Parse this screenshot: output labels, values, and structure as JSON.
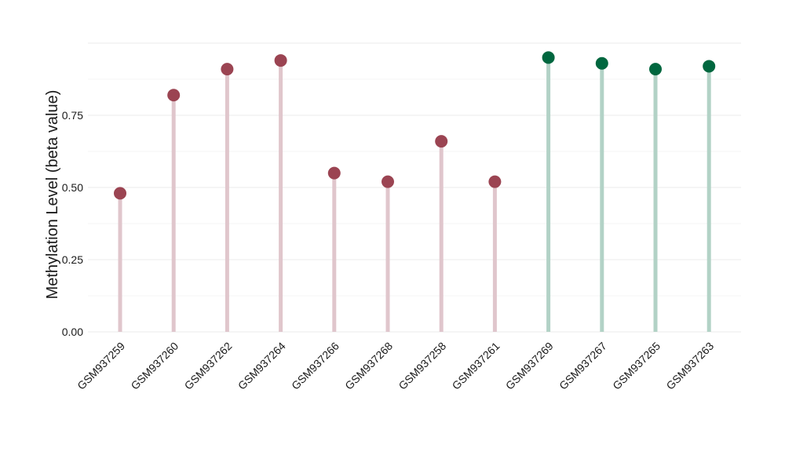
{
  "chart_data": {
    "type": "lollipop",
    "title": "",
    "xlabel": "",
    "ylabel": "Methylation Level (beta value)",
    "ylim": [
      0,
      1.0
    ],
    "yticks": [
      "0.00",
      "0.25",
      "0.50",
      "0.75"
    ],
    "grid": true,
    "legend": "none",
    "categories": [
      "GSM937259",
      "GSM937260",
      "GSM937262",
      "GSM937264",
      "GSM937266",
      "GSM937268",
      "GSM937258",
      "GSM937261",
      "GSM937269",
      "GSM937267",
      "GSM937265",
      "GSM937263"
    ],
    "values": [
      0.48,
      0.82,
      0.91,
      0.94,
      0.55,
      0.52,
      0.66,
      0.52,
      0.95,
      0.93,
      0.91,
      0.92
    ],
    "groups": [
      {
        "members": [
          "GSM937259",
          "GSM937260",
          "GSM937262",
          "GSM937264",
          "GSM937266",
          "GSM937268",
          "GSM937258",
          "GSM937261"
        ],
        "color": "#9b4452",
        "stem_color": "#e0c6cc"
      },
      {
        "members": [
          "GSM937269",
          "GSM937267",
          "GSM937265",
          "GSM937263"
        ],
        "color": "#00673f",
        "stem_color": "#b2d2c6"
      }
    ]
  }
}
